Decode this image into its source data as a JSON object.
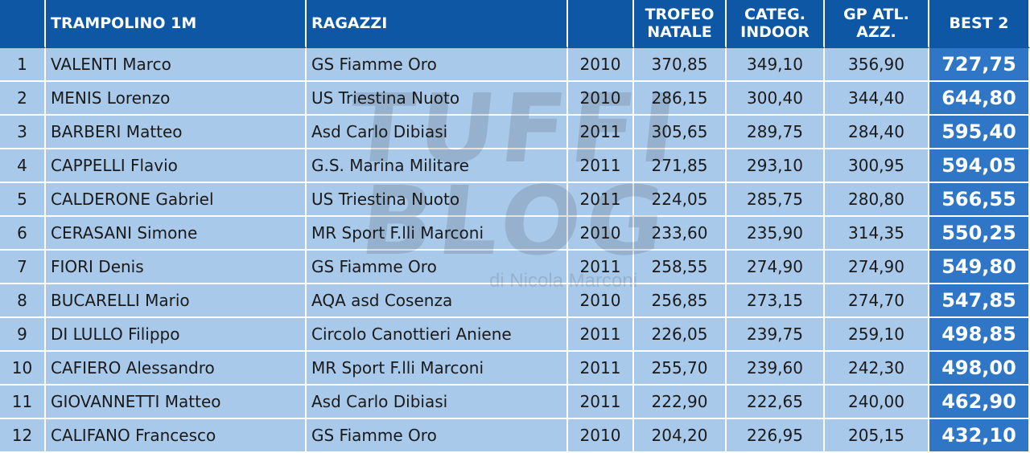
{
  "header": {
    "event": "TRAMPOLINO 1M",
    "category": "RAGAZZI",
    "year": "",
    "col1": "TROFEO NATALE",
    "col2": "CATEG. INDOOR",
    "col3": "GP ATL. AZZ.",
    "best": "BEST 2"
  },
  "rows": [
    {
      "pos": "1",
      "name": "VALENTI Marco",
      "club": "GS Fiamme Oro",
      "year": "2010",
      "c1": "370,85",
      "c2": "349,10",
      "c3": "356,90",
      "best": "727,75"
    },
    {
      "pos": "2",
      "name": "MENIS Lorenzo",
      "club": "US Triestina Nuoto",
      "year": "2010",
      "c1": "286,15",
      "c2": "300,40",
      "c3": "344,40",
      "best": "644,80"
    },
    {
      "pos": "3",
      "name": "BARBERI Matteo",
      "club": "Asd Carlo Dibiasi",
      "year": "2011",
      "c1": "305,65",
      "c2": "289,75",
      "c3": "284,40",
      "best": "595,40"
    },
    {
      "pos": "4",
      "name": "CAPPELLI Flavio",
      "club": "G.S. Marina Militare",
      "year": "2011",
      "c1": "271,85",
      "c2": "293,10",
      "c3": "300,95",
      "best": "594,05"
    },
    {
      "pos": "5",
      "name": "CALDERONE Gabriel",
      "club": "US Triestina Nuoto",
      "year": "2011",
      "c1": "224,05",
      "c2": "285,75",
      "c3": "280,80",
      "best": "566,55"
    },
    {
      "pos": "6",
      "name": "CERASANI Simone",
      "club": "MR Sport F.lli Marconi",
      "year": "2010",
      "c1": "233,60",
      "c2": "235,90",
      "c3": "314,35",
      "best": "550,25"
    },
    {
      "pos": "7",
      "name": "FIORI Denis",
      "club": "GS Fiamme Oro",
      "year": "2011",
      "c1": "258,55",
      "c2": "274,90",
      "c3": "274,90",
      "best": "549,80"
    },
    {
      "pos": "8",
      "name": "BUCARELLI Mario",
      "club": "AQA asd Cosenza",
      "year": "2010",
      "c1": "256,85",
      "c2": "273,15",
      "c3": "274,70",
      "best": "547,85"
    },
    {
      "pos": "9",
      "name": "DI LULLO Filippo",
      "club": "Circolo Canottieri Aniene",
      "year": "2011",
      "c1": "226,05",
      "c2": "239,75",
      "c3": "259,10",
      "best": "498,85"
    },
    {
      "pos": "10",
      "name": "CAFIERO Alessandro",
      "club": "MR Sport F.lli Marconi",
      "year": "2011",
      "c1": "255,70",
      "c2": "239,60",
      "c3": "242,30",
      "best": "498,00"
    },
    {
      "pos": "11",
      "name": "GIOVANNETTI Matteo",
      "club": "Asd Carlo Dibiasi",
      "year": "2011",
      "c1": "222,90",
      "c2": "222,65",
      "c3": "240,00",
      "best": "462,90"
    },
    {
      "pos": "12",
      "name": "CALIFANO Francesco",
      "club": "GS Fiamme Oro",
      "year": "2010",
      "c1": "204,20",
      "c2": "226,95",
      "c3": "205,15",
      "best": "432,10"
    }
  ],
  "watermark": {
    "line1": "TUFFI",
    "line2": "BLOG",
    "line3": "di Nicola Marconi"
  },
  "colors": {
    "header_bg": "#0d57a5",
    "row_bg": "#a9c9ea",
    "best_bg": "#2f76c6"
  }
}
